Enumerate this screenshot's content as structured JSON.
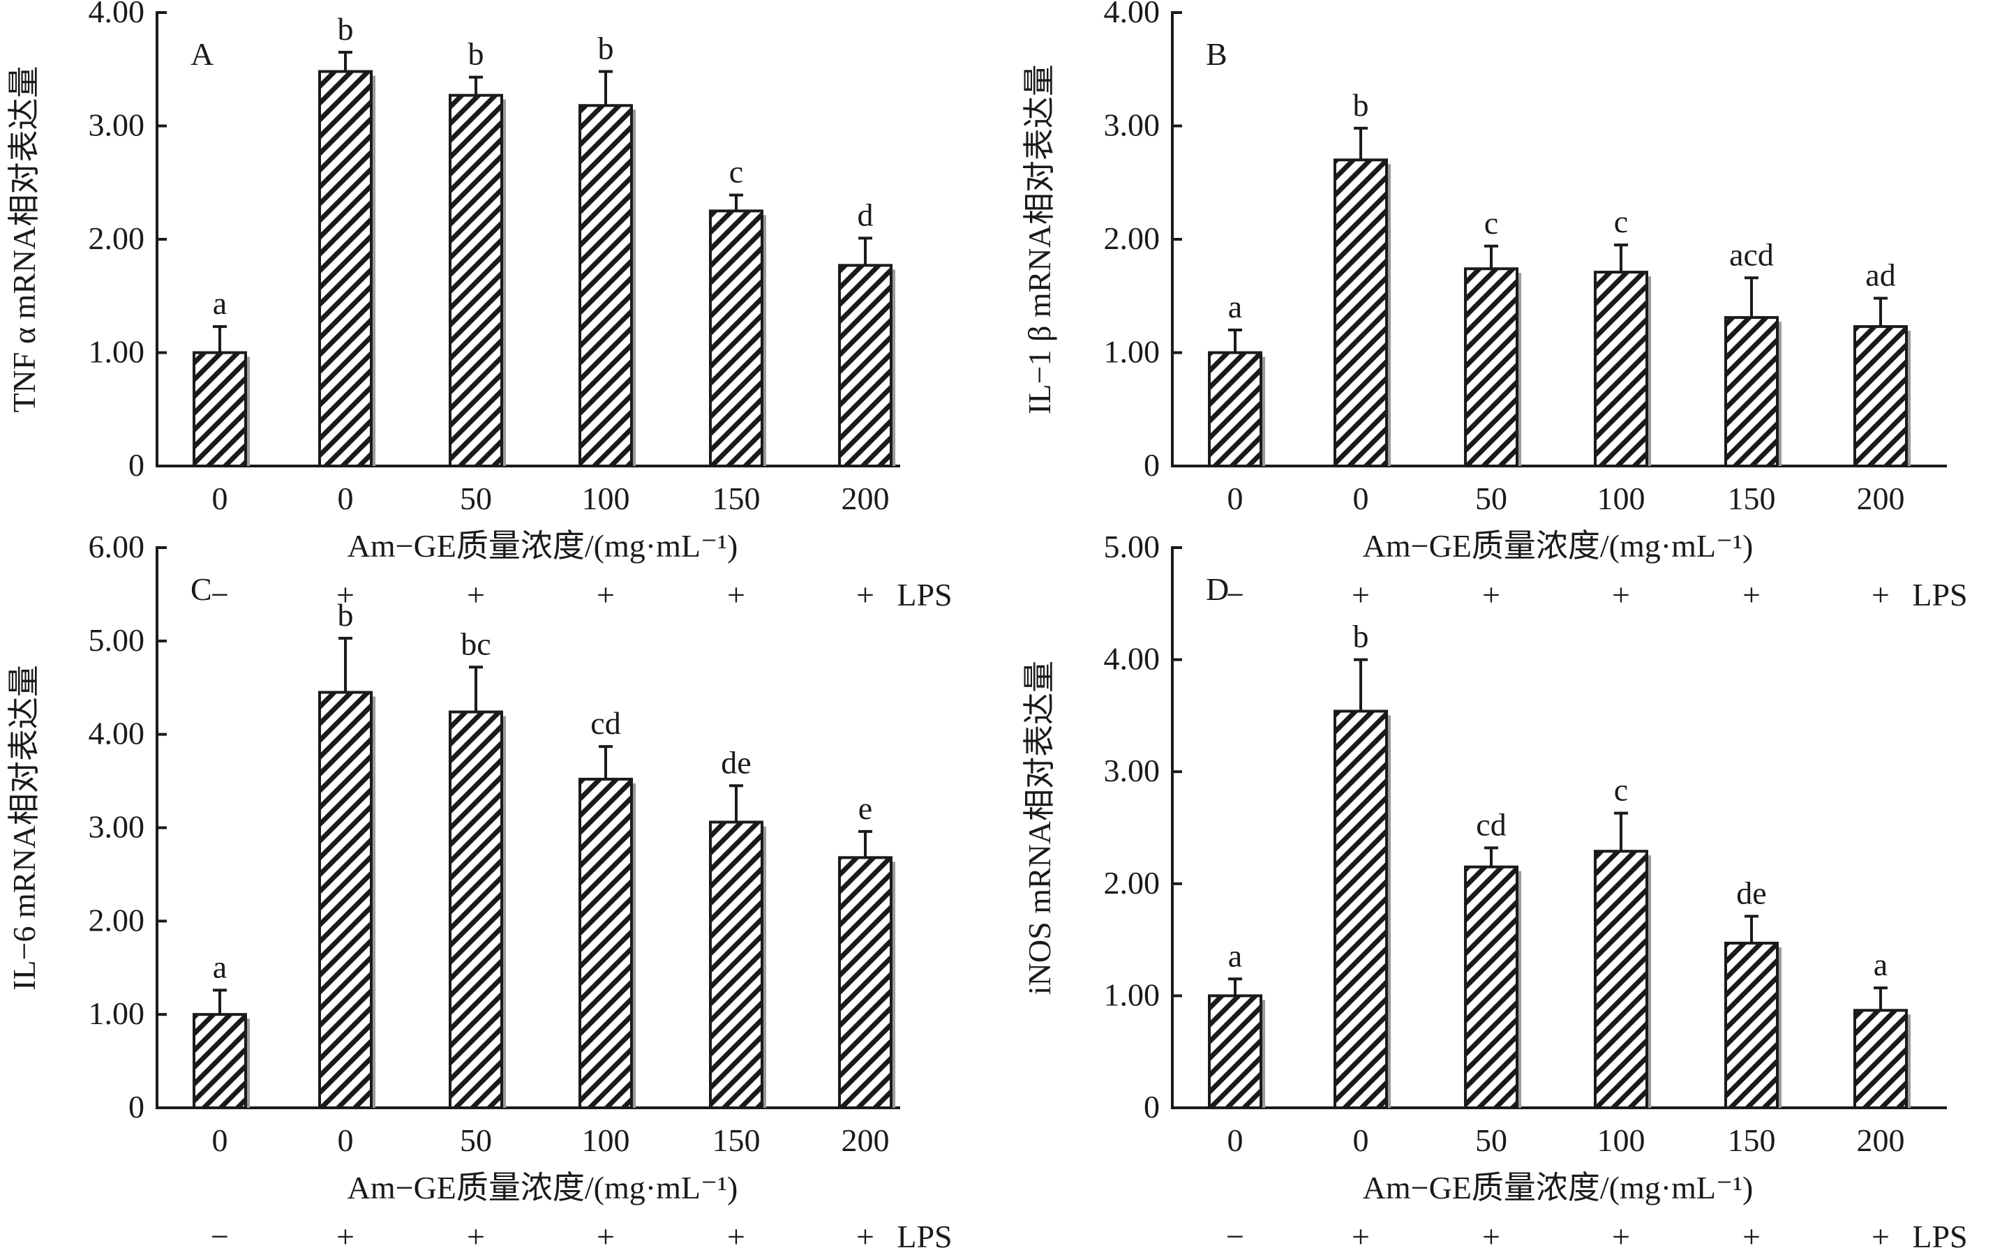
{
  "chart_data": [
    {
      "type": "bar",
      "panel_letter": "A",
      "ylabel": "TNF α mRNA相对表达量",
      "xlabel": "Am−GE质量浓度/(mg·mL⁻¹)",
      "categories": [
        "0",
        "0",
        "50",
        "100",
        "150",
        "200"
      ],
      "lps": [
        "−",
        "+",
        "+",
        "+",
        "+",
        "+"
      ],
      "lps_label": "LPS",
      "values": [
        1.0,
        3.48,
        3.27,
        3.18,
        2.25,
        1.77
      ],
      "errors": [
        0.23,
        0.17,
        0.16,
        0.3,
        0.14,
        0.24
      ],
      "letters": [
        "a",
        "b",
        "b",
        "b",
        "c",
        "d"
      ],
      "ylim": [
        0,
        4
      ],
      "yticks": [
        0,
        1,
        2,
        3,
        4
      ],
      "ytick_labels": [
        "0",
        "1.00",
        "2.00",
        "3.00",
        "4.00"
      ]
    },
    {
      "type": "bar",
      "panel_letter": "B",
      "ylabel": "IL−1 β mRNA相对表达量",
      "xlabel": "Am−GE质量浓度/(mg·mL⁻¹)",
      "categories": [
        "0",
        "0",
        "50",
        "100",
        "150",
        "200"
      ],
      "lps": [
        "−",
        "+",
        "+",
        "+",
        "+",
        "+"
      ],
      "lps_label": "LPS",
      "values": [
        1.0,
        2.7,
        1.74,
        1.71,
        1.31,
        1.23
      ],
      "errors": [
        0.2,
        0.28,
        0.2,
        0.24,
        0.35,
        0.25
      ],
      "letters": [
        "a",
        "b",
        "c",
        "c",
        "acd",
        "ad"
      ],
      "ylim": [
        0,
        4
      ],
      "yticks": [
        0,
        1,
        2,
        3,
        4
      ],
      "ytick_labels": [
        "0",
        "1.00",
        "2.00",
        "3.00",
        "4.00"
      ]
    },
    {
      "type": "bar",
      "panel_letter": "C",
      "ylabel": "IL−6 mRNA相对表达量",
      "xlabel": "Am−GE质量浓度/(mg·mL⁻¹)",
      "categories": [
        "0",
        "0",
        "50",
        "100",
        "150",
        "200"
      ],
      "lps": [
        "−",
        "+",
        "+",
        "+",
        "+",
        "+"
      ],
      "lps_label": "LPS",
      "values": [
        1.0,
        4.45,
        4.24,
        3.52,
        3.06,
        2.68
      ],
      "errors": [
        0.26,
        0.58,
        0.48,
        0.35,
        0.39,
        0.28
      ],
      "letters": [
        "a",
        "b",
        "bc",
        "cd",
        "de",
        "e"
      ],
      "ylim": [
        0,
        6
      ],
      "yticks": [
        0,
        1,
        2,
        3,
        4,
        5,
        6
      ],
      "ytick_labels": [
        "0",
        "1.00",
        "2.00",
        "3.00",
        "4.00",
        "5.00",
        "6.00"
      ]
    },
    {
      "type": "bar",
      "panel_letter": "D",
      "ylabel": "iNOS mRNA相对表达量",
      "xlabel": "Am−GE质量浓度/(mg·mL⁻¹)",
      "categories": [
        "0",
        "0",
        "50",
        "100",
        "150",
        "200"
      ],
      "lps": [
        "−",
        "+",
        "+",
        "+",
        "+",
        "+"
      ],
      "lps_label": "LPS",
      "values": [
        1.0,
        3.54,
        2.15,
        2.29,
        1.47,
        0.87
      ],
      "errors": [
        0.15,
        0.46,
        0.17,
        0.34,
        0.24,
        0.2
      ],
      "letters": [
        "a",
        "b",
        "cd",
        "c",
        "de",
        "a"
      ],
      "ylim": [
        0,
        5
      ],
      "yticks": [
        0,
        1,
        2,
        3,
        4,
        5
      ],
      "ytick_labels": [
        "0",
        "1.00",
        "2.00",
        "3.00",
        "4.00",
        "5.00"
      ]
    }
  ]
}
